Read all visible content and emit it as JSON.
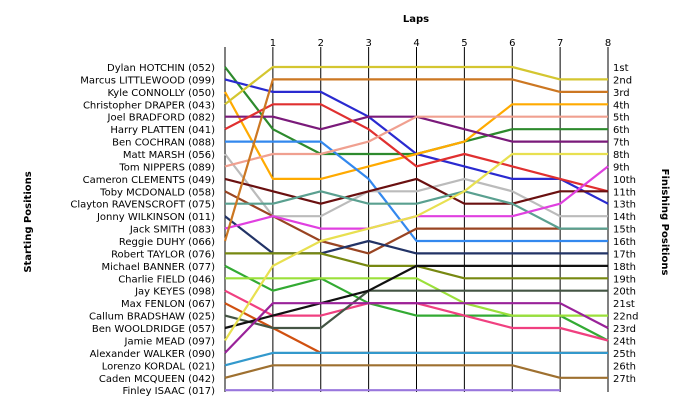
{
  "chart_data": {
    "type": "line",
    "title": "",
    "xlabel": "Laps",
    "ylabel_left": "Starting Positions",
    "ylabel_right": "Finishing Positions",
    "x": [
      0,
      1,
      2,
      3,
      4,
      5,
      6,
      7,
      8
    ],
    "x_tick_labels": [
      "1",
      "2",
      "3",
      "4",
      "5",
      "6",
      "7",
      "8"
    ],
    "finishing_labels": [
      "1st",
      "2nd",
      "3rd",
      "4th",
      "5th",
      "6th",
      "7th",
      "8th",
      "9th",
      "10th",
      "11th",
      "13th",
      "14th",
      "15th",
      "16th",
      "17th",
      "18th",
      "19th",
      "20th",
      "21st",
      "22nd",
      "23rd",
      "24th",
      "25th",
      "26th",
      "27th"
    ],
    "ylim": [
      1,
      27
    ],
    "grid": false,
    "series": [
      {
        "name": "Dylan HOTCHIN (052)",
        "color": "#2d8a2d",
        "values": [
          1,
          6,
          8,
          8,
          8,
          7,
          6,
          6,
          6
        ]
      },
      {
        "name": "Marcus LITTLEWOOD (099)",
        "color": "#2a2ad0",
        "values": [
          2,
          3,
          3,
          5,
          8,
          9,
          10,
          10,
          12
        ]
      },
      {
        "name": "Kyle CONNOLLY (050)",
        "color": "#ffaa00",
        "values": [
          3,
          10,
          10,
          9,
          8,
          7,
          4,
          4,
          4
        ]
      },
      {
        "name": "Christopher DRAPER (043)",
        "color": "#d4c630",
        "values": [
          4,
          1,
          1,
          1,
          1,
          1,
          1,
          2,
          2
        ]
      },
      {
        "name": "Joel BRADFORD (082)",
        "color": "#7a1a7a",
        "values": [
          5,
          5,
          6,
          5,
          5,
          6,
          7,
          7,
          7
        ]
      },
      {
        "name": "Harry PLATTEN (041)",
        "color": "#e03030",
        "values": [
          6,
          4,
          4,
          6,
          9,
          8,
          9,
          10,
          11
        ]
      },
      {
        "name": "Ben COCHRAN (088)",
        "color": "#3388ee",
        "values": [
          7,
          7,
          7,
          10,
          15,
          15,
          15,
          15,
          15
        ]
      },
      {
        "name": "Matt MARSH (056)",
        "color": "#bbbbbb",
        "values": [
          8,
          13,
          13,
          11,
          11,
          10,
          11,
          13,
          13
        ]
      },
      {
        "name": "Tom NIPPERS (089)",
        "color": "#f0a090",
        "values": [
          9,
          8,
          8,
          7,
          5,
          5,
          5,
          5,
          5
        ]
      },
      {
        "name": "Cameron CLEMENTS (049)",
        "color": "#6a1010",
        "values": [
          10,
          11,
          12,
          11,
          10,
          12,
          12,
          11,
          11
        ]
      },
      {
        "name": "Toby MCDONALD (058)",
        "color": "#994422",
        "values": [
          11,
          13,
          15,
          16,
          14,
          14,
          14,
          14,
          14
        ]
      },
      {
        "name": "Clayton RAVENSCROFT (075)",
        "color": "#5aa090",
        "values": [
          12,
          12,
          11,
          12,
          12,
          11,
          12,
          14,
          14
        ]
      },
      {
        "name": "Jonny WILKINSON (011)",
        "color": "#223366",
        "values": [
          13,
          16,
          16,
          15,
          16,
          16,
          16,
          16,
          16
        ]
      },
      {
        "name": "Jack SMITH (083)",
        "color": "#e040e0",
        "values": [
          14,
          13,
          14,
          14,
          13,
          13,
          13,
          12,
          9
        ]
      },
      {
        "name": "Reggie DUHY (066)",
        "color": "#cc7722",
        "values": [
          15,
          2,
          2,
          2,
          2,
          2,
          2,
          3,
          3
        ]
      },
      {
        "name": "Robert TAYLOR (076)",
        "color": "#778811",
        "values": [
          16,
          16,
          16,
          17,
          17,
          18,
          18,
          18,
          18
        ]
      },
      {
        "name": "Michael BANNER (077)",
        "color": "#33aa33",
        "values": [
          17,
          19,
          18,
          20,
          21,
          21,
          21,
          21,
          23
        ]
      },
      {
        "name": "Charlie FIELD (046)",
        "color": "#9be03a",
        "values": [
          18,
          18,
          18,
          18,
          18,
          20,
          21,
          21,
          21
        ]
      },
      {
        "name": "Jay KEYES (098)",
        "color": "#f04080",
        "values": [
          19,
          21,
          21,
          20,
          20,
          21,
          22,
          22,
          23
        ]
      },
      {
        "name": "Max FENLON (067)",
        "color": "#d05010",
        "values": [
          20,
          22,
          24,
          24,
          24,
          24,
          24,
          24,
          24
        ]
      },
      {
        "name": "Callum BRADSHAW (025)",
        "color": "#445544",
        "values": [
          21,
          22,
          22,
          19,
          19,
          19,
          19,
          19,
          19
        ]
      },
      {
        "name": "Ben WOOLDRIDGE (057)",
        "color": "#111111",
        "values": [
          22,
          21,
          20,
          19,
          17,
          17,
          17,
          17,
          17
        ]
      },
      {
        "name": "Jamie MEAD (097)",
        "color": "#e8e050",
        "values": [
          23,
          17,
          15,
          14,
          13,
          11,
          8,
          8,
          8
        ]
      },
      {
        "name": "Alexander WALKER (090)",
        "color": "#992299",
        "values": [
          24,
          20,
          20,
          20,
          20,
          20,
          20,
          20,
          22
        ]
      },
      {
        "name": "Lorenzo KORDAL (021)",
        "color": "#3399cc",
        "values": [
          25,
          24,
          24,
          24,
          24,
          24,
          24,
          24,
          24
        ]
      },
      {
        "name": "Caden MCQUEEN (042)",
        "color": "#9e7030",
        "values": [
          26,
          25,
          25,
          25,
          25,
          25,
          25,
          26,
          26
        ]
      },
      {
        "name": "Finley ISAAC (017)",
        "color": "#9977dd",
        "values": [
          27,
          27,
          27,
          27,
          27,
          27,
          27,
          27,
          null
        ]
      }
    ]
  }
}
